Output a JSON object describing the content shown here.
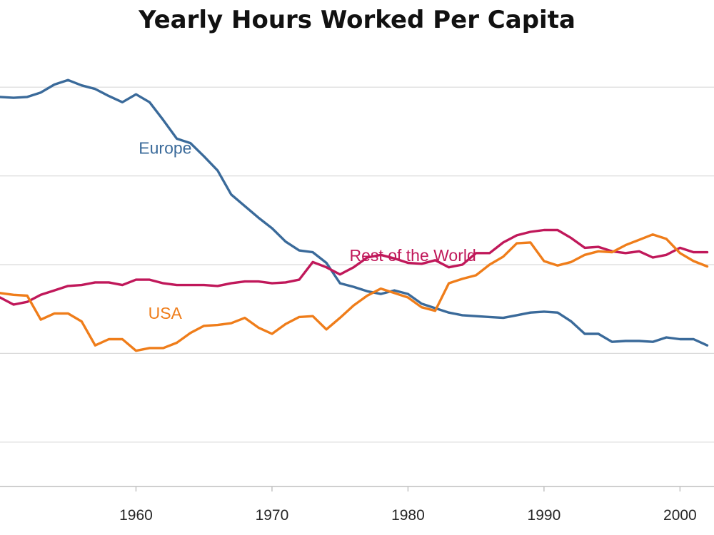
{
  "chart_data": {
    "type": "line",
    "title": "Yearly Hours Worked Per Capita",
    "xlabel": "",
    "ylabel": "",
    "xlim": [
      1950,
      2002.5
    ],
    "x_ticks": [
      "1960",
      "1970",
      "1980",
      "1990",
      "2000"
    ],
    "x_tick_values": [
      1960,
      1970,
      1980,
      1990,
      2000
    ],
    "ylim": [
      0,
      5
    ],
    "y_gridlines": [
      0.5,
      1.5,
      2.5,
      3.5,
      4.5
    ],
    "y_tick_labels_visible": false,
    "grid": true,
    "legend": "none (inline series labels)",
    "x": [
      1950,
      1951,
      1952,
      1953,
      1954,
      1955,
      1956,
      1957,
      1958,
      1959,
      1960,
      1961,
      1962,
      1963,
      1964,
      1965,
      1966,
      1967,
      1968,
      1969,
      1970,
      1971,
      1972,
      1973,
      1974,
      1975,
      1976,
      1977,
      1978,
      1979,
      1980,
      1981,
      1982,
      1983,
      1984,
      1985,
      1986,
      1987,
      1988,
      1989,
      1990,
      1991,
      1992,
      1993,
      1994,
      1995,
      1996,
      1997,
      1998,
      1999,
      2000,
      2001,
      2002
    ],
    "series": [
      {
        "name": "Europe",
        "color": "#3A6A9A",
        "label_at": [
          1960.2,
          3.75
        ],
        "values": [
          4.39,
          4.38,
          4.39,
          4.44,
          4.53,
          4.58,
          4.52,
          4.48,
          4.4,
          4.33,
          4.42,
          4.33,
          4.13,
          3.92,
          3.87,
          3.72,
          3.56,
          3.29,
          3.16,
          3.03,
          2.91,
          2.76,
          2.66,
          2.64,
          2.52,
          2.29,
          2.25,
          2.2,
          2.17,
          2.21,
          2.17,
          2.06,
          2.01,
          1.96,
          1.93,
          1.92,
          1.91,
          1.9,
          1.93,
          1.96,
          1.97,
          1.96,
          1.86,
          1.72,
          1.72,
          1.63,
          1.64,
          1.64,
          1.63,
          1.68,
          1.66,
          1.66,
          1.59
        ]
      },
      {
        "name": "Rest of the World",
        "color": "#C0185A",
        "label_at": [
          1975.7,
          2.54
        ],
        "values": [
          2.13,
          2.05,
          2.08,
          2.16,
          2.21,
          2.26,
          2.27,
          2.3,
          2.3,
          2.27,
          2.33,
          2.33,
          2.29,
          2.27,
          2.27,
          2.27,
          2.26,
          2.29,
          2.31,
          2.31,
          2.29,
          2.3,
          2.33,
          2.53,
          2.47,
          2.39,
          2.47,
          2.58,
          2.61,
          2.57,
          2.52,
          2.51,
          2.55,
          2.47,
          2.5,
          2.63,
          2.63,
          2.75,
          2.83,
          2.87,
          2.89,
          2.89,
          2.8,
          2.69,
          2.7,
          2.65,
          2.63,
          2.65,
          2.58,
          2.61,
          2.69,
          2.64,
          2.64
        ]
      },
      {
        "name": "USA",
        "color": "#EF7D1A",
        "label_at": [
          1960.9,
          1.89
        ],
        "values": [
          2.18,
          2.16,
          2.15,
          1.88,
          1.95,
          1.95,
          1.86,
          1.59,
          1.66,
          1.66,
          1.53,
          1.56,
          1.56,
          1.62,
          1.73,
          1.81,
          1.82,
          1.84,
          1.9,
          1.79,
          1.72,
          1.83,
          1.91,
          1.92,
          1.77,
          1.9,
          2.04,
          2.15,
          2.23,
          2.18,
          2.13,
          2.02,
          1.98,
          2.29,
          2.34,
          2.38,
          2.5,
          2.59,
          2.74,
          2.75,
          2.54,
          2.49,
          2.53,
          2.61,
          2.65,
          2.64,
          2.72,
          2.78,
          2.84,
          2.79,
          2.63,
          2.54,
          2.48
        ]
      }
    ]
  }
}
